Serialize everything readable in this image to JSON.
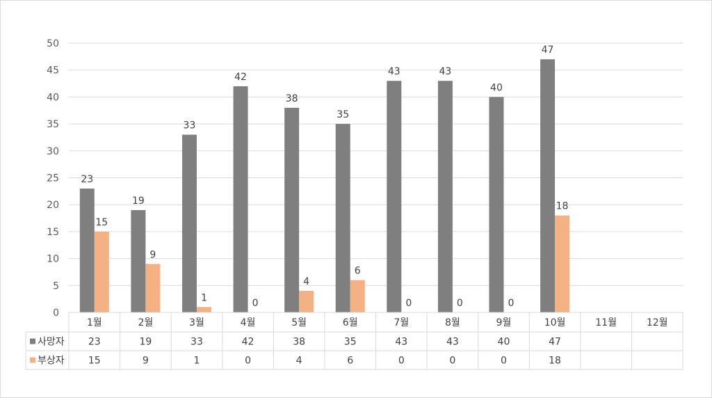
{
  "chart_data": {
    "type": "bar",
    "title": "",
    "xlabel": "",
    "ylabel": "",
    "ylim": [
      0,
      50
    ],
    "y_ticks": [
      0,
      5,
      10,
      15,
      20,
      25,
      30,
      35,
      40,
      45,
      50
    ],
    "grid": true,
    "legend_placement": "data-table",
    "categories": [
      "1월",
      "2월",
      "3월",
      "4월",
      "5월",
      "6월",
      "7월",
      "8월",
      "9월",
      "10월",
      "11월",
      "12월"
    ],
    "series": [
      {
        "name": "사망자",
        "color": "#7f7f7f",
        "values": [
          23,
          19,
          33,
          42,
          38,
          35,
          43,
          43,
          40,
          47,
          null,
          null
        ]
      },
      {
        "name": "부상자",
        "color": "#f4b183",
        "values": [
          15,
          9,
          1,
          0,
          4,
          6,
          0,
          0,
          0,
          18,
          null,
          null
        ]
      }
    ]
  }
}
